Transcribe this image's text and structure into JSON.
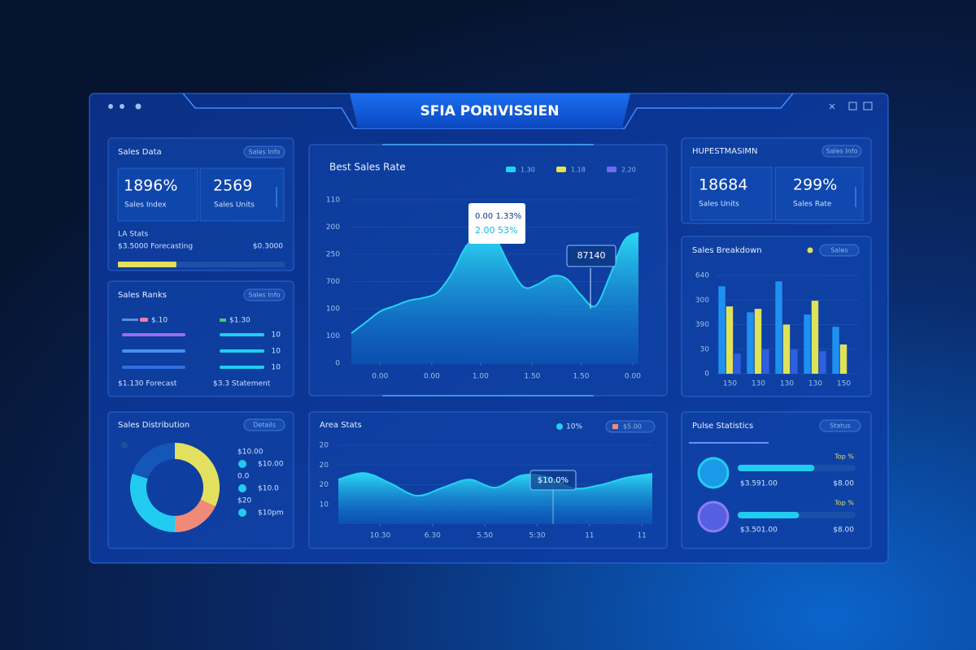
{
  "header": {
    "title": "SFIA PORIVISSIEN"
  },
  "kpi_left": {
    "title": "Sales Data",
    "tag": "Sales Info",
    "stats": [
      {
        "value": "1896%",
        "label": "Sales Index"
      },
      {
        "value": "2569",
        "label": "Sales Units"
      }
    ],
    "sub_title": "LA Stats",
    "sub_text": "$3.5000 Forecasting",
    "sub_value": "$0.3000",
    "progress": 35
  },
  "list_panel": {
    "title": "Sales Ranks",
    "tag": "Sales Info",
    "rows": [
      {
        "left_label": "$.10",
        "right_label": "$1.30"
      },
      {
        "right_label": "10"
      },
      {
        "right_label": "10"
      },
      {
        "right_label": "10"
      }
    ],
    "footer_left": "$1.130 Forecast",
    "footer_right": "$3.3 Statement"
  },
  "donut_panel": {
    "title": "Sales Distribution",
    "tag": "Details",
    "legend": [
      {
        "label": "$10.00",
        "value": "$10.00"
      },
      {
        "label": "0.0",
        "value": "$10.0"
      },
      {
        "label": "$20",
        "value": "$10pm"
      }
    ]
  },
  "kpi_right": {
    "title": "HUPESTMASIMN",
    "tag": "Sales Info",
    "stats": [
      {
        "value": "18684",
        "label": "Sales Units"
      },
      {
        "value": "299%",
        "label": "Sales Rate"
      }
    ]
  },
  "bar_panel": {
    "title": "Sales Breakdown",
    "tag": "Sales"
  },
  "wave_panel": {
    "title": "Area Stats",
    "legend": [
      "10%",
      "$5.00"
    ]
  },
  "progress_panel": {
    "title": "Pulse Statistics",
    "tag": "Status",
    "items": [
      {
        "label": "$3.591.00",
        "tag": "Top %",
        "value_text": "$8.00",
        "progress": 65
      },
      {
        "label": "$3.501.00",
        "tag": "Top %",
        "value_text": "$8.00",
        "progress": 52
      }
    ]
  },
  "chart_data": [
    {
      "type": "area",
      "title": "Best Sales Rate",
      "color": "#22d3f0",
      "legend": [
        {
          "name": "1.30",
          "color": "#22d3f0"
        },
        {
          "name": "1.18",
          "color": "#e8e34a"
        },
        {
          "name": "2.20",
          "color": "#6b6cf0"
        }
      ],
      "x": [
        0,
        0.25,
        0.5,
        0.75,
        1,
        1.25,
        1.5,
        1.75,
        2,
        2.25,
        2.5,
        2.75,
        3,
        3.25,
        3.5,
        3.75,
        4,
        4.25,
        4.5,
        4.75,
        5
      ],
      "values": [
        1.1,
        1.5,
        1.9,
        2.1,
        2.3,
        2.4,
        2.6,
        3.3,
        4.3,
        4.7,
        4.6,
        3.6,
        2.8,
        2.9,
        3.2,
        3.1,
        2.5,
        2.1,
        3.2,
        4.5,
        4.8
      ],
      "xlim": [
        0,
        5
      ],
      "xticks": [
        {
          "value": 0.5,
          "label": "0.00"
        },
        {
          "value": 1.4,
          "label": "0.00"
        },
        {
          "value": 2.25,
          "label": "1.00"
        },
        {
          "value": 3.15,
          "label": "1.50"
        },
        {
          "value": 4,
          "label": "1.50"
        },
        {
          "value": 4.9,
          "label": "0.00"
        }
      ],
      "ylim": [
        0,
        6
      ],
      "yticks": [
        {
          "value": 6,
          "label": "110"
        },
        {
          "value": 5,
          "label": "200"
        },
        {
          "value": 4,
          "label": "250"
        },
        {
          "value": 3,
          "label": "700"
        },
        {
          "value": 2,
          "label": "100"
        },
        {
          "value": 1,
          "label": "100"
        },
        0
      ],
      "annotations": [
        "0.00 1.33%",
        "2.00 53%",
        "87140"
      ]
    },
    {
      "type": "bar",
      "categories": [
        "150",
        "130",
        "130",
        "130",
        "150"
      ],
      "series": [
        {
          "color": "#1e90f0",
          "values": [
            3.56,
            2.5,
            3.76,
            2.41,
            1.91
          ]
        },
        {
          "color": "#dfe35a",
          "values": [
            2.74,
            2.64,
            2.0,
            2.97,
            1.19
          ]
        },
        {
          "color": "#2f5fe0",
          "values": [
            0.82,
            0.99,
            0.99,
            0.92,
            null
          ]
        }
      ],
      "ylim": [
        0,
        4
      ],
      "yticks": [
        {
          "value": 4,
          "label": "640"
        },
        {
          "value": 3,
          "label": "300"
        },
        {
          "value": 2,
          "label": "390"
        },
        {
          "value": 1,
          "label": "30"
        },
        0
      ]
    },
    {
      "type": "pie",
      "values": [
        32,
        18,
        30,
        20
      ],
      "colors": [
        "#e3e060",
        "#f08a78",
        "#22ccf0",
        "#1457b8"
      ]
    },
    {
      "type": "area",
      "color": "#22d3f0",
      "x": [
        0.2,
        0.7,
        1.2,
        1.7,
        2.2,
        2.7,
        3.2,
        3.7,
        4.2,
        4.7,
        5.2,
        5.7,
        6.2
      ],
      "values": [
        2.26,
        2.59,
        2.06,
        1.44,
        1.85,
        2.26,
        1.85,
        2.47,
        2.39,
        1.81,
        1.98,
        2.35,
        2.55
      ],
      "xlim": [
        0.2,
        6.2
      ],
      "xticks": [
        {
          "value": 1,
          "label": "10.30"
        },
        {
          "value": 2,
          "label": "6.30"
        },
        {
          "value": 3,
          "label": "5.50"
        },
        {
          "value": 4,
          "label": "5:30"
        },
        {
          "value": 5,
          "label": "11"
        },
        {
          "value": 6,
          "label": "11"
        }
      ],
      "ylim": [
        0,
        4
      ],
      "yticks": [
        {
          "value": 4,
          "label": "20"
        },
        {
          "value": 3,
          "label": "20"
        },
        {
          "value": 2,
          "label": "20"
        },
        {
          "value": 1,
          "label": "10"
        }
      ],
      "annotations": [
        "$10.0%"
      ]
    }
  ]
}
